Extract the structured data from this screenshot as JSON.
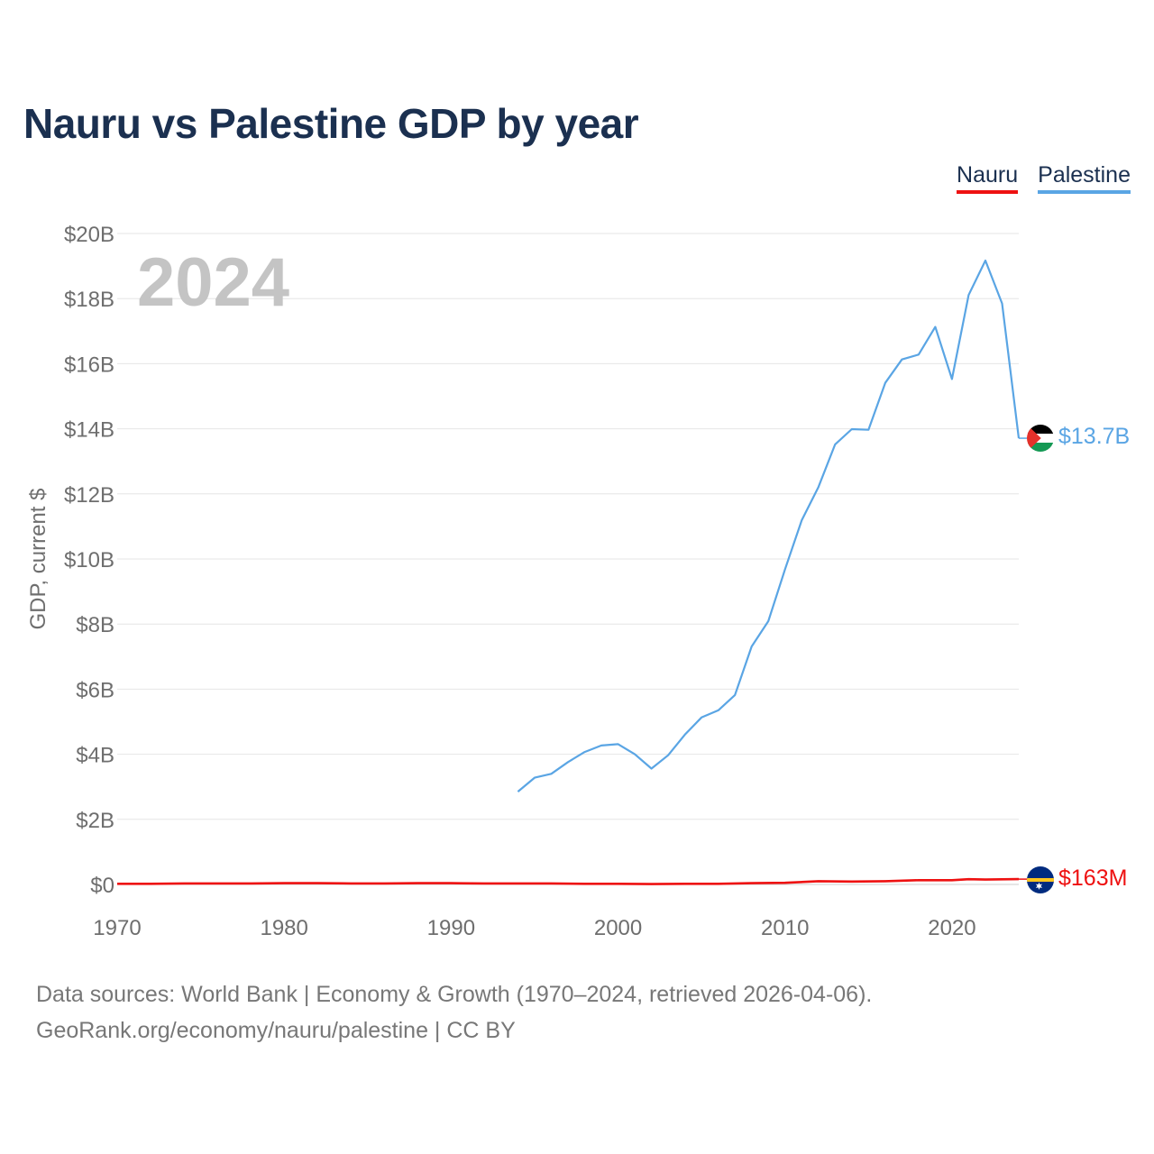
{
  "title": "Nauru vs Palestine GDP by year",
  "year_watermark": "2024",
  "legend": [
    {
      "label": "Nauru",
      "color": "#ee1111"
    },
    {
      "label": "Palestine",
      "color": "#5aa5e4"
    }
  ],
  "sources": {
    "line1": "Data sources: World Bank | Economy & Growth (1970–2024, retrieved 2026-04-06).",
    "line2": "GeoRank.org/economy/nauru/palestine | CC BY"
  },
  "chart_data": {
    "type": "line",
    "title": "Nauru vs Palestine GDP by year",
    "xlabel": "",
    "ylabel": "GDP, current $",
    "xlim": [
      1970,
      2024
    ],
    "ylim": [
      0,
      20
    ],
    "y_unit": "billions USD",
    "grid": true,
    "legend_position": "top-right",
    "x_ticks": [
      {
        "value": 1970,
        "label": "1970"
      },
      {
        "value": 1980,
        "label": "1980"
      },
      {
        "value": 1990,
        "label": "1990"
      },
      {
        "value": 2000,
        "label": "2000"
      },
      {
        "value": 2010,
        "label": "2010"
      },
      {
        "value": 2020,
        "label": "2020"
      }
    ],
    "y_ticks": [
      {
        "value": 0,
        "label": "$0"
      },
      {
        "value": 2,
        "label": "$2B"
      },
      {
        "value": 4,
        "label": "$4B"
      },
      {
        "value": 6,
        "label": "$6B"
      },
      {
        "value": 8,
        "label": "$8B"
      },
      {
        "value": 10,
        "label": "$10B"
      },
      {
        "value": 12,
        "label": "$12B"
      },
      {
        "value": 14,
        "label": "$14B"
      },
      {
        "value": 16,
        "label": "$16B"
      },
      {
        "value": 18,
        "label": "$18B"
      },
      {
        "value": 20,
        "label": "$20B"
      }
    ],
    "series": [
      {
        "name": "Nauru",
        "color": "#ee1111",
        "end_label": "$163M",
        "flag": "nauru-flag",
        "x": [
          1970,
          1972,
          1974,
          1976,
          1978,
          1980,
          1982,
          1984,
          1986,
          1988,
          1990,
          1992,
          1994,
          1996,
          1998,
          2000,
          2002,
          2004,
          2006,
          2008,
          2010,
          2012,
          2014,
          2016,
          2018,
          2020,
          2021,
          2022,
          2024
        ],
        "values": [
          0.02,
          0.02,
          0.03,
          0.03,
          0.03,
          0.04,
          0.04,
          0.03,
          0.03,
          0.04,
          0.04,
          0.03,
          0.03,
          0.03,
          0.02,
          0.02,
          0.01,
          0.02,
          0.02,
          0.04,
          0.05,
          0.1,
          0.09,
          0.1,
          0.13,
          0.13,
          0.16,
          0.15,
          0.163
        ]
      },
      {
        "name": "Palestine",
        "color": "#5aa5e4",
        "end_label": "$13.7B",
        "flag": "palestine-flag",
        "x": [
          1994,
          1995,
          1996,
          1997,
          1998,
          1999,
          2000,
          2001,
          2002,
          2003,
          2004,
          2005,
          2006,
          2007,
          2008,
          2009,
          2010,
          2011,
          2012,
          2013,
          2014,
          2015,
          2016,
          2017,
          2018,
          2019,
          2020,
          2021,
          2022,
          2023,
          2024
        ],
        "values": [
          2.85,
          3.28,
          3.4,
          3.76,
          4.07,
          4.27,
          4.31,
          4.0,
          3.56,
          3.97,
          4.6,
          5.13,
          5.35,
          5.82,
          7.31,
          8.09,
          9.68,
          11.19,
          12.21,
          13.52,
          13.99,
          13.97,
          15.41,
          16.13,
          16.28,
          17.13,
          15.53,
          18.11,
          19.17,
          17.85,
          13.71
        ]
      }
    ]
  }
}
